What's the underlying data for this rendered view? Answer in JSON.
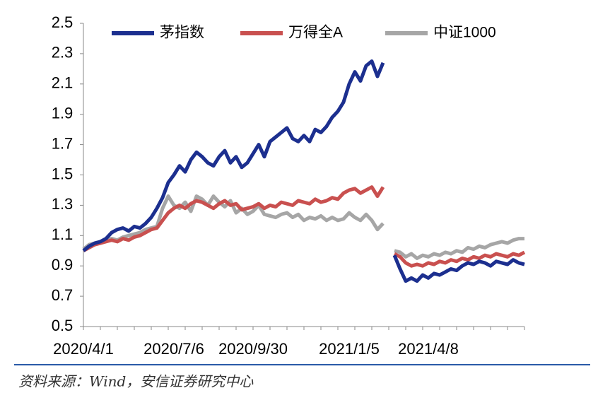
{
  "chart_data": {
    "type": "line",
    "categories": [
      "2020/4/1",
      null,
      null,
      null,
      null,
      null,
      null,
      null,
      null,
      null,
      null,
      null,
      null,
      null,
      null,
      null,
      "2020/7/6",
      null,
      null,
      null,
      null,
      null,
      null,
      null,
      null,
      null,
      null,
      null,
      null,
      null,
      "2020/9/30",
      null,
      null,
      null,
      null,
      null,
      null,
      null,
      null,
      null,
      null,
      null,
      null,
      null,
      null,
      null,
      null,
      "2021/1/5",
      null,
      null,
      null,
      null,
      null,
      null,
      null,
      null,
      null,
      null,
      null,
      null,
      null,
      "2021/4/8",
      null,
      null,
      null,
      null,
      null,
      null,
      null,
      null,
      null,
      null,
      null,
      null,
      null,
      null,
      null,
      null,
      null
    ],
    "series": [
      {
        "name": "茅指数",
        "color": "#1c2f8f",
        "values": [
          1.0,
          1.03,
          1.05,
          1.06,
          1.08,
          1.12,
          1.14,
          1.15,
          1.13,
          1.16,
          1.15,
          1.18,
          1.22,
          1.28,
          1.35,
          1.45,
          1.5,
          1.56,
          1.52,
          1.6,
          1.65,
          1.62,
          1.58,
          1.56,
          1.62,
          1.66,
          1.58,
          1.62,
          1.55,
          1.58,
          1.64,
          1.7,
          1.62,
          1.72,
          1.75,
          1.78,
          1.81,
          1.74,
          1.72,
          1.76,
          1.72,
          1.8,
          1.78,
          1.82,
          1.88,
          1.92,
          1.98,
          2.1,
          2.18,
          2.12,
          2.22,
          2.25,
          2.15,
          2.24,
          null,
          0.97,
          0.88,
          0.8,
          0.82,
          0.8,
          0.84,
          0.82,
          0.85,
          0.84,
          0.86,
          0.88,
          0.87,
          0.9,
          0.92,
          0.91,
          0.93,
          0.92,
          0.9,
          0.93,
          0.92,
          0.91,
          0.94,
          0.92,
          0.91
        ]
      },
      {
        "name": "万得全A",
        "color": "#c9504f",
        "values": [
          1.0,
          1.02,
          1.04,
          1.05,
          1.06,
          1.07,
          1.06,
          1.08,
          1.07,
          1.09,
          1.1,
          1.12,
          1.14,
          1.15,
          1.2,
          1.25,
          1.28,
          1.3,
          1.28,
          1.31,
          1.33,
          1.32,
          1.3,
          1.28,
          1.31,
          1.33,
          1.3,
          1.31,
          1.27,
          1.28,
          1.29,
          1.31,
          1.28,
          1.3,
          1.29,
          1.32,
          1.31,
          1.3,
          1.33,
          1.32,
          1.31,
          1.34,
          1.32,
          1.33,
          1.35,
          1.34,
          1.38,
          1.4,
          1.41,
          1.38,
          1.4,
          1.42,
          1.36,
          1.42,
          null,
          0.98,
          0.96,
          0.92,
          0.9,
          0.91,
          0.9,
          0.92,
          0.91,
          0.93,
          0.92,
          0.94,
          0.93,
          0.95,
          0.94,
          0.96,
          0.95,
          0.97,
          0.96,
          0.98,
          0.97,
          0.96,
          0.98,
          0.97,
          0.99
        ]
      },
      {
        "name": "中证1000",
        "color": "#a6a6a6",
        "values": [
          1.01,
          1.04,
          1.05,
          1.06,
          1.07,
          1.08,
          1.07,
          1.09,
          1.1,
          1.11,
          1.12,
          1.14,
          1.15,
          1.16,
          1.28,
          1.36,
          1.3,
          1.28,
          1.32,
          1.26,
          1.36,
          1.34,
          1.3,
          1.36,
          1.32,
          1.29,
          1.33,
          1.25,
          1.28,
          1.24,
          1.26,
          1.3,
          1.24,
          1.23,
          1.22,
          1.24,
          1.25,
          1.22,
          1.24,
          1.2,
          1.22,
          1.21,
          1.23,
          1.2,
          1.22,
          1.2,
          1.21,
          1.25,
          1.22,
          1.2,
          1.24,
          1.2,
          1.14,
          1.18,
          null,
          1.0,
          0.99,
          0.96,
          0.98,
          0.95,
          0.97,
          0.96,
          0.98,
          0.97,
          0.99,
          0.98,
          1.0,
          0.99,
          1.02,
          1.01,
          1.03,
          1.02,
          1.04,
          1.05,
          1.06,
          1.05,
          1.07,
          1.08,
          1.08
        ]
      }
    ],
    "ylim": [
      0.5,
      2.5
    ],
    "yticks": [
      0.5,
      0.7,
      0.9,
      1.1,
      1.3,
      1.5,
      1.7,
      1.9,
      2.1,
      2.3,
      2.5
    ],
    "grid": false,
    "legend": "top",
    "source": "资料来源：Wind，安信证券研究中心"
  }
}
